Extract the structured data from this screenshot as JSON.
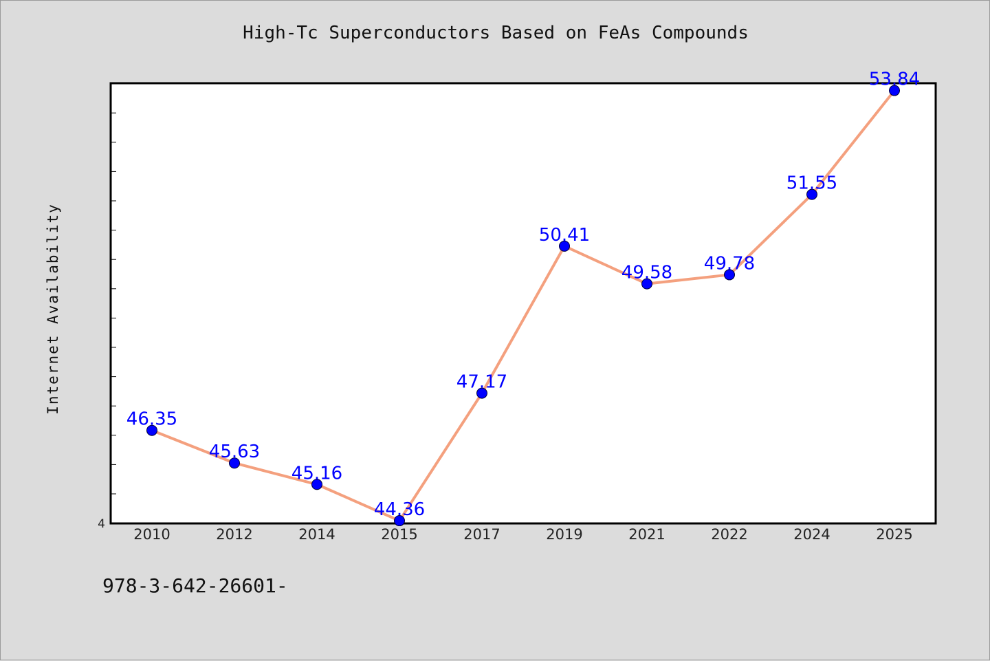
{
  "chart_data": {
    "type": "line",
    "title": "High-Tc Superconductors Based on FeAs Compounds",
    "xlabel": "",
    "ylabel": "Internet Availability",
    "categories": [
      "2010",
      "2012",
      "2014",
      "2015",
      "2017",
      "2019",
      "2021",
      "2022",
      "2024",
      "2025"
    ],
    "series": [
      {
        "values": [
          46.35,
          45.63,
          45.16,
          44.36,
          47.17,
          50.41,
          49.58,
          49.78,
          51.55,
          53.84
        ],
        "labels": [
          "46.35",
          "45.63",
          "45.16",
          "44.36",
          "47.17",
          "50.41",
          "49.58",
          "49.78",
          "51.55",
          "53.84"
        ]
      }
    ],
    "ylim": [
      44.3,
      54.0
    ],
    "y_tick_label": "4",
    "grid": false,
    "line_color": "#f4a07e",
    "marker_color": "#0000ff",
    "label_color": "#0000ff"
  },
  "footer": {
    "text": "978-3-642-26601-"
  }
}
